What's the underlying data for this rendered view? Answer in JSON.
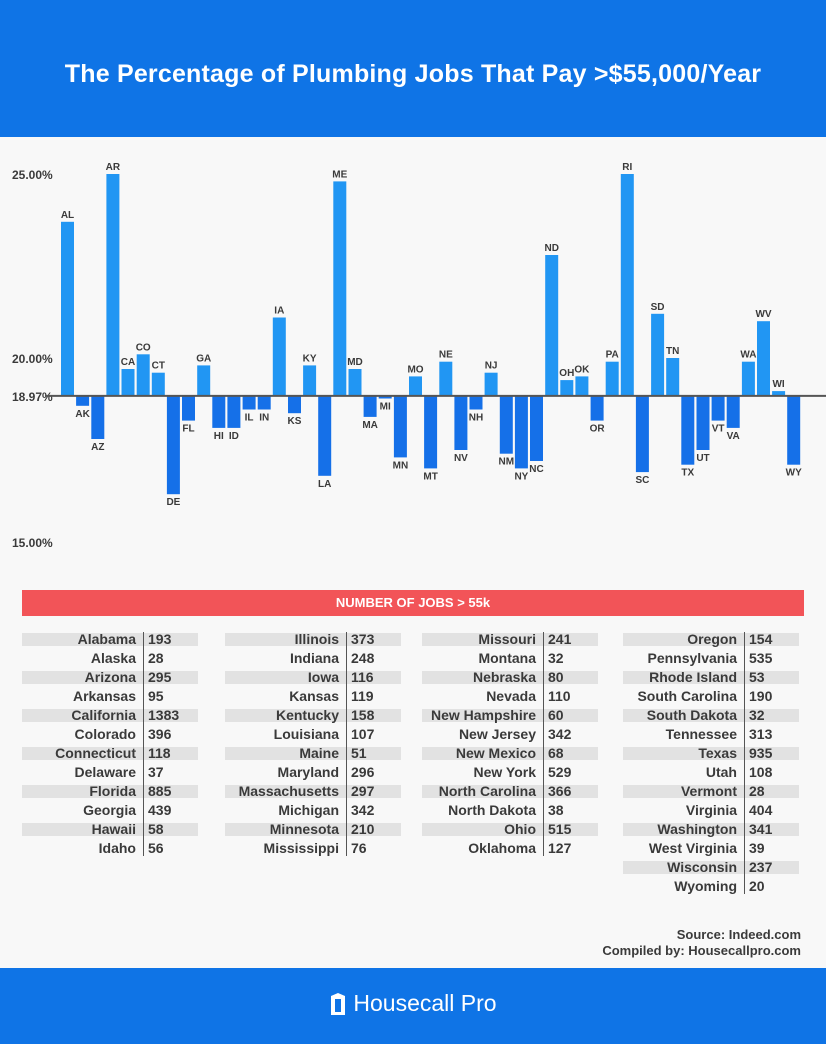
{
  "header": {
    "title": "The Percentage of Plumbing Jobs That Pay >$55,000/Year"
  },
  "chart_data": {
    "type": "bar",
    "title": "The Percentage of Plumbing Jobs That Pay >$55,000/Year",
    "baseline": 18.97,
    "ylim": [
      15.0,
      25.0
    ],
    "yticks": [
      {
        "value": 25.0,
        "label": "25.00%"
      },
      {
        "value": 20.0,
        "label": "20.00%"
      },
      {
        "value": 18.97,
        "label": "18.97%"
      },
      {
        "value": 15.0,
        "label": "15.00%"
      }
    ],
    "categories": [
      "AL",
      "AK",
      "AZ",
      "AR",
      "CA",
      "CO",
      "CT",
      "DE",
      "FL",
      "GA",
      "HI",
      "ID",
      "IL",
      "IN",
      "IA",
      "KS",
      "KY",
      "LA",
      "ME",
      "MD",
      "MA",
      "MI",
      "MN",
      "MO",
      "MT",
      "NE",
      "NV",
      "NH",
      "NJ",
      "NM",
      "NY",
      "NC",
      "ND",
      "OH",
      "OK",
      "OR",
      "PA",
      "RI",
      "SC",
      "SD",
      "TN",
      "TX",
      "UT",
      "VT",
      "VA",
      "WA",
      "WV",
      "WI",
      "WY"
    ],
    "values": [
      23.7,
      18.7,
      17.8,
      25.0,
      19.7,
      20.1,
      19.6,
      16.3,
      18.3,
      19.8,
      18.1,
      18.1,
      18.6,
      18.6,
      21.1,
      18.5,
      19.8,
      16.8,
      24.8,
      19.7,
      18.4,
      18.9,
      17.3,
      19.5,
      17.0,
      19.9,
      17.5,
      18.6,
      19.6,
      17.4,
      17.0,
      17.2,
      22.8,
      19.4,
      19.5,
      18.3,
      19.9,
      25.0,
      16.9,
      21.2,
      20.0,
      17.1,
      17.5,
      18.3,
      18.1,
      19.9,
      21.0,
      19.1,
      17.1
    ],
    "xlabel": "",
    "ylabel": ""
  },
  "table": {
    "banner": "NUMBER OF JOBS > 55k",
    "columns": [
      [
        [
          "Alabama",
          "193"
        ],
        [
          "Alaska",
          "28"
        ],
        [
          "Arizona",
          "295"
        ],
        [
          "Arkansas",
          "95"
        ],
        [
          "California",
          "1383"
        ],
        [
          "Colorado",
          "396"
        ],
        [
          "Connecticut",
          "118"
        ],
        [
          "Delaware",
          "37"
        ],
        [
          "Florida",
          "885"
        ],
        [
          "Georgia",
          "439"
        ],
        [
          "Hawaii",
          "58"
        ],
        [
          "Idaho",
          "56"
        ]
      ],
      [
        [
          "Illinois",
          "373"
        ],
        [
          "Indiana",
          "248"
        ],
        [
          "Iowa",
          "116"
        ],
        [
          "Kansas",
          "119"
        ],
        [
          "Kentucky",
          "158"
        ],
        [
          "Louisiana",
          "107"
        ],
        [
          "Maine",
          "51"
        ],
        [
          "Maryland",
          "296"
        ],
        [
          "Massachusetts",
          "297"
        ],
        [
          "Michigan",
          "342"
        ],
        [
          "Minnesota",
          "210"
        ],
        [
          "Mississippi",
          "76"
        ]
      ],
      [
        [
          "Missouri",
          "241"
        ],
        [
          "Montana",
          "32"
        ],
        [
          "Nebraska",
          "80"
        ],
        [
          "Nevada",
          "110"
        ],
        [
          "New Hampshire",
          "60"
        ],
        [
          "New Jersey",
          "342"
        ],
        [
          "New Mexico",
          "68"
        ],
        [
          "New York",
          "529"
        ],
        [
          "North Carolina",
          "366"
        ],
        [
          "North Dakota",
          "38"
        ],
        [
          "Ohio",
          "515"
        ],
        [
          "Oklahoma",
          "127"
        ]
      ],
      [
        [
          "Oregon",
          "154"
        ],
        [
          "Pennsylvania",
          "535"
        ],
        [
          "Rhode Island",
          "53"
        ],
        [
          "South Carolina",
          "190"
        ],
        [
          "South Dakota",
          "32"
        ],
        [
          "Tennessee",
          "313"
        ],
        [
          "Texas",
          "935"
        ],
        [
          "Utah",
          "108"
        ],
        [
          "Vermont",
          "28"
        ],
        [
          "Virginia",
          "404"
        ],
        [
          "Washington",
          "341"
        ],
        [
          "West Virginia",
          "39"
        ],
        [
          "Wisconsin",
          "237"
        ],
        [
          "Wyoming",
          "20"
        ]
      ]
    ]
  },
  "source": {
    "line1": "Source: Indeed.com",
    "line2": "Compiled by: Housecallpro.com"
  },
  "footer": {
    "brand": "Housecall Pro"
  },
  "colors": {
    "header": "#0f74e6",
    "bar_above": "#2196f3",
    "bar_below": "#1570e8",
    "banner": "#f25458"
  }
}
